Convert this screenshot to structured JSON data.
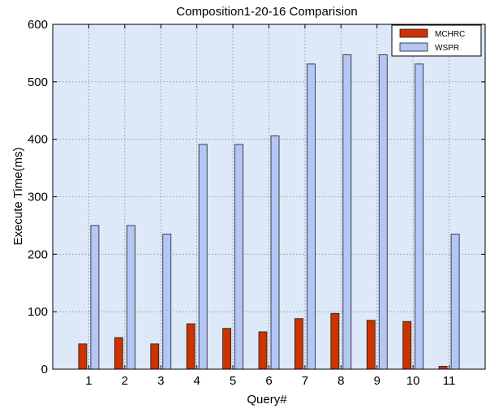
{
  "chart_data": {
    "type": "bar",
    "title": "Composition1-20-16 Comparision",
    "xlabel": "Query#",
    "ylabel": "Execute Time(ms)",
    "categories": [
      "1",
      "2",
      "3",
      "4",
      "5",
      "6",
      "7",
      "8",
      "9",
      "10",
      "11"
    ],
    "series": [
      {
        "name": "MCHRC",
        "color": "#cc3300",
        "values": [
          44,
          55,
          44,
          79,
          71,
          65,
          88,
          97,
          85,
          83,
          5
        ]
      },
      {
        "name": "WSPR",
        "color": "#b4c6f4",
        "values": [
          250,
          250,
          235,
          391,
          391,
          406,
          531,
          547,
          547,
          531,
          235
        ]
      }
    ],
    "yticks": [
      0,
      100,
      200,
      300,
      400,
      500,
      600
    ],
    "ylim": [
      0,
      600
    ],
    "grid": true,
    "legend_position": "top-right",
    "plot_background": "#dde8f8"
  }
}
